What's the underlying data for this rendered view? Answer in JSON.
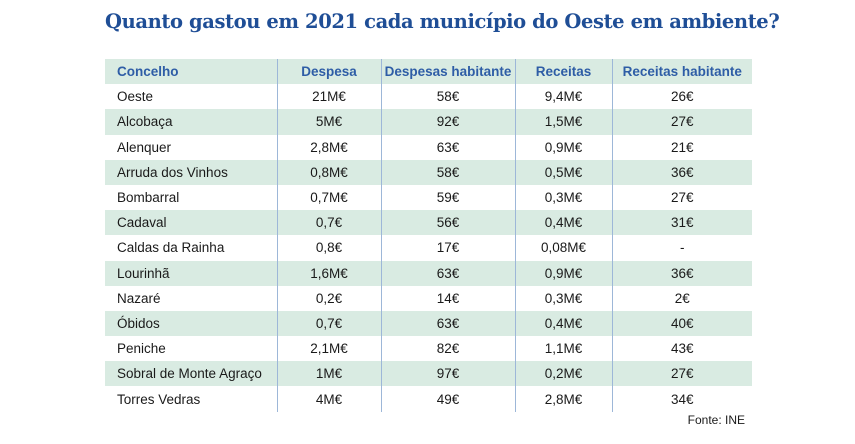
{
  "title": "Quanto gastou em 2021 cada município do Oeste em ambiente?",
  "table": {
    "headers": [
      "Concelho",
      "Despesa",
      "Despesas habitante",
      "Receitas",
      "Receitas habitante"
    ],
    "rows": [
      [
        "Oeste",
        "21M€",
        "58€",
        "9,4M€",
        "26€"
      ],
      [
        "Alcobaça",
        "5M€",
        "92€",
        "1,5M€",
        "27€"
      ],
      [
        "Alenquer",
        "2,8M€",
        "63€",
        "0,9M€",
        "21€"
      ],
      [
        "Arruda dos Vinhos",
        "0,8M€",
        "58€",
        "0,5M€",
        "36€"
      ],
      [
        "Bombarral",
        "0,7M€",
        "59€",
        "0,3M€",
        "27€"
      ],
      [
        "Cadaval",
        "0,7€",
        "56€",
        "0,4M€",
        "31€"
      ],
      [
        "Caldas da Rainha",
        "0,8€",
        "17€",
        "0,08M€",
        "-"
      ],
      [
        "Lourinhã",
        "1,6M€",
        "63€",
        "0,9M€",
        "36€"
      ],
      [
        "Nazaré",
        "0,2€",
        "14€",
        "0,3M€",
        "2€"
      ],
      [
        "Óbidos",
        "0,7€",
        "63€",
        "0,4M€",
        "40€"
      ],
      [
        "Peniche",
        "2,1M€",
        "82€",
        "1,1M€",
        "43€"
      ],
      [
        "Sobral de Monte Agraço",
        "1M€",
        "97€",
        "0,2M€",
        "27€"
      ],
      [
        "Torres Vedras",
        "4M€",
        "49€",
        "2,8M€",
        "34€"
      ]
    ]
  },
  "source": "Fonte: INE",
  "colors": {
    "title": "#1f4e96",
    "header_text": "#2e5da6",
    "row_shade": "#d9ebe2",
    "divider": "#9db7d8"
  }
}
